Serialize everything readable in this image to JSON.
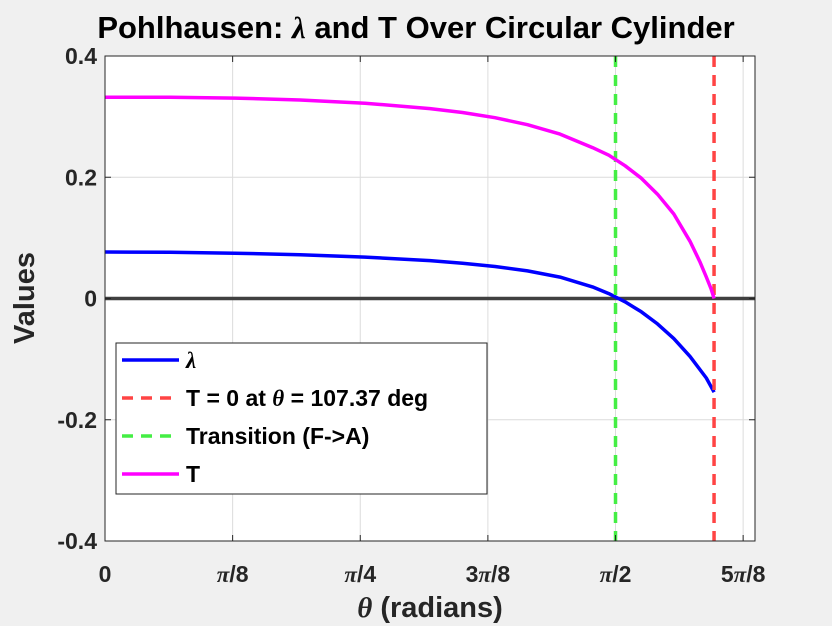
{
  "chart_data": {
    "type": "line",
    "title_prefix": "Pohlhausen: ",
    "title_symbol": "λ",
    "title_suffix": " and T Over Circular Cylinder",
    "xlabel_symbol": "θ",
    "xlabel_text": " (radians)",
    "ylabel": "Values",
    "xlim": [
      0,
      2.0
    ],
    "ylim": [
      -0.4,
      0.4
    ],
    "x_ticks": [
      0,
      0.3927,
      0.7854,
      1.1781,
      1.5708,
      1.9635
    ],
    "x_tick_labels": [
      "0",
      "π/8",
      "π/4",
      "3π/8",
      "π/2",
      "5π/8"
    ],
    "y_ticks": [
      -0.4,
      -0.2,
      0,
      0.2,
      0.4
    ],
    "y_tick_labels": [
      "-0.4",
      "-0.2",
      "0",
      "0.2",
      "0.4"
    ],
    "grid": true,
    "legend_location": "bottom-left",
    "series": [
      {
        "name": "λ",
        "color": "#0000ff",
        "style": "solid",
        "x": [
          0,
          0.2,
          0.4,
          0.6,
          0.8,
          1.0,
          1.1,
          1.2,
          1.3,
          1.4,
          1.5,
          1.55,
          1.6,
          1.65,
          1.7,
          1.75,
          1.8,
          1.85,
          1.874
        ],
        "y": [
          0.0767,
          0.0762,
          0.0747,
          0.0722,
          0.0683,
          0.0625,
          0.0583,
          0.0528,
          0.0455,
          0.0353,
          0.0192,
          0.008,
          -0.0054,
          -0.0219,
          -0.0419,
          -0.0662,
          -0.0955,
          -0.1312,
          -0.1545
        ]
      },
      {
        "name": "T = 0 at θ = 107.37 deg",
        "color": "#ff4444",
        "style": "dashed",
        "vertical_line_x": 1.874
      },
      {
        "name": "Transition (F->A)",
        "color": "#44ee44",
        "style": "dashed",
        "vertical_line_x": 1.5708
      },
      {
        "name": "T",
        "color": "#ff00ff",
        "style": "solid",
        "x": [
          0,
          0.2,
          0.4,
          0.6,
          0.8,
          1.0,
          1.1,
          1.2,
          1.3,
          1.4,
          1.5,
          1.55,
          1.6,
          1.65,
          1.7,
          1.75,
          1.8,
          1.83,
          1.85,
          1.865,
          1.874
        ],
        "y": [
          0.332,
          0.3318,
          0.3305,
          0.3275,
          0.3222,
          0.3132,
          0.3068,
          0.2983,
          0.2866,
          0.2711,
          0.2489,
          0.2364,
          0.219,
          0.1985,
          0.1721,
          0.1393,
          0.0944,
          0.0609,
          0.0355,
          0.0158,
          0.0
        ]
      }
    ],
    "reference_lines": [
      {
        "y": 0,
        "color": "#404040"
      }
    ],
    "legend": [
      {
        "symbol": "λ",
        "text": ""
      },
      {
        "prefix": "T = 0 at ",
        "symbol": "θ",
        "text": " = 107.37 deg"
      },
      {
        "prefix": "Transition (F->A)",
        "symbol": "",
        "text": ""
      },
      {
        "prefix": "T",
        "symbol": "",
        "text": ""
      }
    ]
  }
}
